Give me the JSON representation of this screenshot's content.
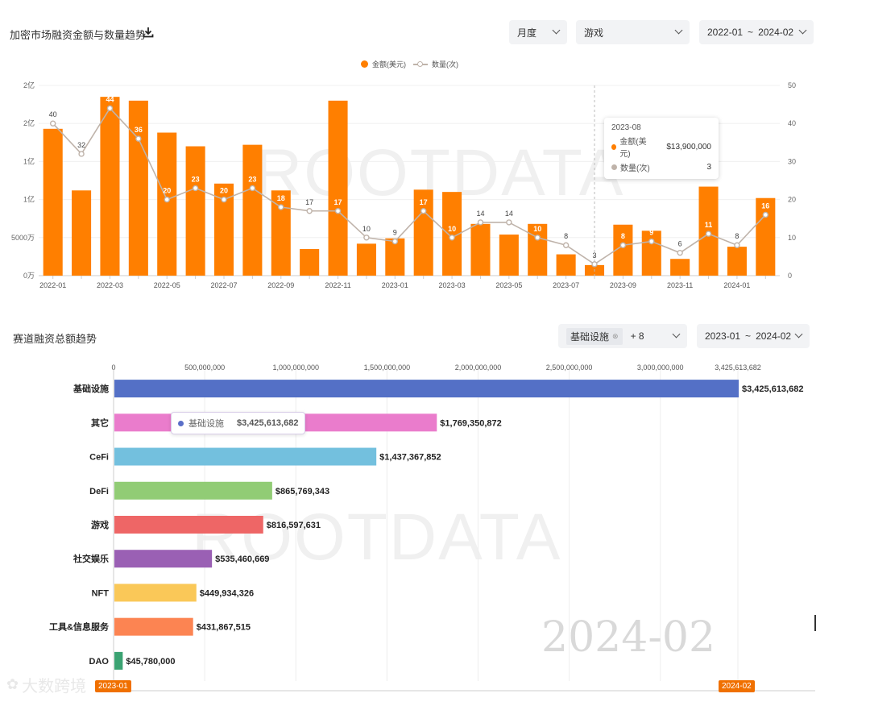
{
  "top": {
    "title": "加密市场融资金额与数量趋势",
    "period_select": "月度",
    "category_select": "游戏",
    "range_start": "2022-01",
    "range_sep": "~",
    "range_end": "2024-02",
    "watermark": "ROOTDATA",
    "tooltip": {
      "date": "2023-08",
      "amount_label": "金额(美元)",
      "amount_value": "$13,900,000",
      "count_label": "数量(次)",
      "count_value": "3"
    }
  },
  "bottom": {
    "title": "赛道融资总额趋势",
    "filter_tag": "基础设施",
    "filter_more": "+ 8",
    "range_start": "2023-01",
    "range_sep": "~",
    "range_end": "2024-02",
    "watermark": "ROOTDATA",
    "big_date": "2024-02",
    "timeline_start": "2023-01",
    "timeline_end": "2024-02",
    "tooltip": {
      "label": "基础设施",
      "value": "$3,425,613,682"
    }
  },
  "logo_text": "大数跨境",
  "colors": {
    "amount": "#ff7f00",
    "count_line": "#bfb3aa",
    "accent": "#f07000"
  },
  "chart_data": [
    {
      "type": "bar",
      "title": "加密市场融资金额与数量趋势",
      "categories": [
        "2022-01",
        "2022-02",
        "2022-03",
        "2022-04",
        "2022-05",
        "2022-06",
        "2022-07",
        "2022-08",
        "2022-09",
        "2022-10",
        "2022-11",
        "2022-12",
        "2023-01",
        "2023-02",
        "2023-03",
        "2023-04",
        "2023-05",
        "2023-06",
        "2023-07",
        "2023-08",
        "2023-09",
        "2023-10",
        "2023-11",
        "2023-12",
        "2024-01",
        "2024-02"
      ],
      "x_tick_labels": [
        "2022-01",
        "2022-03",
        "2022-05",
        "2022-07",
        "2022-09",
        "2022-11",
        "2023-01",
        "2023-03",
        "2023-05",
        "2023-07",
        "2023-09",
        "2023-11",
        "2024-01"
      ],
      "y_left_tick_labels": [
        "0万",
        "5000万",
        "1亿",
        "1亿",
        "2亿",
        "2亿"
      ],
      "y_right_tick_labels": [
        "0",
        "10",
        "20",
        "30",
        "40",
        "50"
      ],
      "y_left_lim": [
        0,
        250000000
      ],
      "y_right_lim": [
        0,
        50
      ],
      "series": [
        {
          "name": "金额(美元)",
          "type": "bar",
          "axis": "left",
          "values": [
            193000000,
            112000000,
            235000000,
            230000000,
            188000000,
            170000000,
            121000000,
            172000000,
            112000000,
            35000000,
            230000000,
            42000000,
            49000000,
            113000000,
            110000000,
            68000000,
            54000000,
            68000000,
            28000000,
            13900000,
            67000000,
            59000000,
            22000000,
            117000000,
            38000000,
            102000000
          ]
        },
        {
          "name": "数量(次)",
          "type": "line",
          "axis": "right",
          "values": [
            40,
            32,
            44,
            36,
            20,
            23,
            20,
            23,
            18,
            17,
            17,
            10,
            9,
            17,
            10,
            14,
            14,
            10,
            8,
            3,
            8,
            9,
            6,
            11,
            8,
            16
          ]
        }
      ],
      "grid": true,
      "legend": "top-center"
    },
    {
      "type": "bar",
      "orientation": "horizontal",
      "title": "赛道融资总额趋势",
      "categories": [
        "基础设施",
        "其它",
        "CeFi",
        "DeFi",
        "游戏",
        "社交娱乐",
        "NFT",
        "工具&信息服务",
        "DAO"
      ],
      "values": [
        3425613682,
        1769350872,
        1437367852,
        865769343,
        816597631,
        535460669,
        449934326,
        431867515,
        45780000
      ],
      "value_labels": [
        "$3,425,613,682",
        "$1,769,350,872",
        "$1,437,367,852",
        "$865,769,343",
        "$816,597,631",
        "$535,460,669",
        "$449,934,326",
        "$431,867,515",
        "$45,780,000"
      ],
      "colors": [
        "#5470c6",
        "#ea7ccc",
        "#73c0de",
        "#91cc75",
        "#ee6666",
        "#9a60b4",
        "#fac858",
        "#fc8452",
        "#3ba272"
      ],
      "x_tick_labels": [
        "0",
        "500,000,000",
        "1,000,000,000",
        "1,500,000,000",
        "2,000,000,000",
        "2,500,000,000",
        "3,000,000,000",
        "3,425,613,682"
      ],
      "x_ticks": [
        0,
        500000000,
        1000000000,
        1500000000,
        2000000000,
        2500000000,
        3000000000,
        3425613682
      ],
      "xlim": [
        0,
        3425613682
      ],
      "grid": true
    }
  ]
}
